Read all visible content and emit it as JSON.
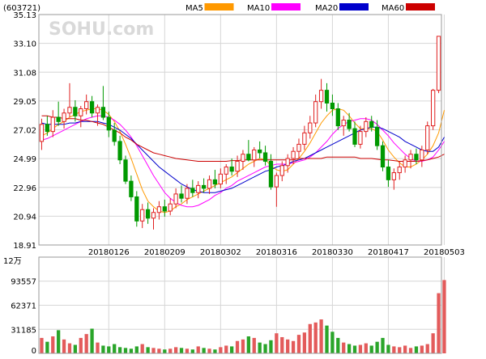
{
  "chart_data": [
    {
      "type": "candlestick",
      "code": "(603721)",
      "watermark": "SOHU.com",
      "legend": [
        {
          "name": "MA5",
          "color": "#ff9900"
        },
        {
          "name": "MA10",
          "color": "#ff00ff"
        },
        {
          "name": "MA20",
          "color": "#0000cc"
        },
        {
          "name": "MA60",
          "color": "#cc0000"
        }
      ],
      "ylim": [
        18.91,
        35.13
      ],
      "y_ticks": [
        "35.13",
        "33.10",
        "31.08",
        "29.05",
        "27.02",
        "24.99",
        "22.96",
        "20.94",
        "18.91"
      ],
      "x_ticks": [
        {
          "label": "20180126",
          "index": 12
        },
        {
          "label": "20180209",
          "index": 22
        },
        {
          "label": "20180302",
          "index": 32
        },
        {
          "label": "20180316",
          "index": 42
        },
        {
          "label": "20180330",
          "index": 52
        },
        {
          "label": "20180417",
          "index": 62
        },
        {
          "label": "20180503",
          "index": 72
        }
      ],
      "grid": true,
      "candles": [
        {
          "o": 26.2,
          "h": 27.8,
          "l": 25.6,
          "c": 27.4
        },
        {
          "o": 27.4,
          "h": 28.0,
          "l": 26.6,
          "c": 26.9
        },
        {
          "o": 26.9,
          "h": 28.4,
          "l": 26.5,
          "c": 27.9
        },
        {
          "o": 27.9,
          "h": 29.0,
          "l": 27.3,
          "c": 27.6
        },
        {
          "o": 27.6,
          "h": 28.5,
          "l": 27.1,
          "c": 28.2
        },
        {
          "o": 28.2,
          "h": 30.3,
          "l": 27.9,
          "c": 28.6
        },
        {
          "o": 28.6,
          "h": 29.1,
          "l": 27.6,
          "c": 28.0
        },
        {
          "o": 28.0,
          "h": 28.7,
          "l": 27.2,
          "c": 28.5
        },
        {
          "o": 28.5,
          "h": 29.5,
          "l": 28.1,
          "c": 29.0
        },
        {
          "o": 29.0,
          "h": 29.4,
          "l": 27.9,
          "c": 28.2
        },
        {
          "o": 28.2,
          "h": 28.8,
          "l": 27.3,
          "c": 28.6
        },
        {
          "o": 28.6,
          "h": 30.1,
          "l": 27.7,
          "c": 27.9
        },
        {
          "o": 27.9,
          "h": 28.3,
          "l": 26.5,
          "c": 27.0
        },
        {
          "o": 27.0,
          "h": 27.5,
          "l": 25.9,
          "c": 26.2
        },
        {
          "o": 26.2,
          "h": 26.6,
          "l": 24.6,
          "c": 24.9
        },
        {
          "o": 24.9,
          "h": 25.2,
          "l": 23.2,
          "c": 23.4
        },
        {
          "o": 23.4,
          "h": 23.8,
          "l": 22.0,
          "c": 22.3
        },
        {
          "o": 22.3,
          "h": 22.7,
          "l": 20.2,
          "c": 20.6
        },
        {
          "o": 20.6,
          "h": 21.8,
          "l": 20.1,
          "c": 21.4
        },
        {
          "o": 21.4,
          "h": 21.9,
          "l": 20.4,
          "c": 20.8
        },
        {
          "o": 20.8,
          "h": 21.5,
          "l": 20.0,
          "c": 21.2
        },
        {
          "o": 21.2,
          "h": 22.0,
          "l": 20.7,
          "c": 21.6
        },
        {
          "o": 21.6,
          "h": 22.1,
          "l": 20.9,
          "c": 21.3
        },
        {
          "o": 21.3,
          "h": 22.2,
          "l": 21.0,
          "c": 21.8
        },
        {
          "o": 21.8,
          "h": 22.9,
          "l": 21.5,
          "c": 22.5
        },
        {
          "o": 22.5,
          "h": 23.1,
          "l": 21.9,
          "c": 22.2
        },
        {
          "o": 22.2,
          "h": 23.2,
          "l": 21.8,
          "c": 22.9
        },
        {
          "o": 22.9,
          "h": 23.5,
          "l": 22.3,
          "c": 22.6
        },
        {
          "o": 22.6,
          "h": 23.4,
          "l": 22.2,
          "c": 23.1
        },
        {
          "o": 23.1,
          "h": 23.6,
          "l": 22.6,
          "c": 22.9
        },
        {
          "o": 22.9,
          "h": 23.8,
          "l": 22.5,
          "c": 23.5
        },
        {
          "o": 23.5,
          "h": 24.2,
          "l": 22.9,
          "c": 23.2
        },
        {
          "o": 23.2,
          "h": 24.3,
          "l": 22.9,
          "c": 23.9
        },
        {
          "o": 23.9,
          "h": 24.6,
          "l": 23.2,
          "c": 24.4
        },
        {
          "o": 24.4,
          "h": 25.0,
          "l": 23.8,
          "c": 24.1
        },
        {
          "o": 24.1,
          "h": 25.2,
          "l": 23.7,
          "c": 24.8
        },
        {
          "o": 24.8,
          "h": 25.6,
          "l": 24.2,
          "c": 25.3
        },
        {
          "o": 25.3,
          "h": 26.3,
          "l": 24.8,
          "c": 24.9
        },
        {
          "o": 24.9,
          "h": 25.8,
          "l": 24.4,
          "c": 25.6
        },
        {
          "o": 25.6,
          "h": 26.2,
          "l": 25.0,
          "c": 25.4
        },
        {
          "o": 25.4,
          "h": 25.9,
          "l": 24.5,
          "c": 24.8
        },
        {
          "o": 24.8,
          "h": 25.3,
          "l": 22.8,
          "c": 23.0
        },
        {
          "o": 23.0,
          "h": 24.0,
          "l": 21.6,
          "c": 23.8
        },
        {
          "o": 23.8,
          "h": 24.8,
          "l": 23.4,
          "c": 24.5
        },
        {
          "o": 24.5,
          "h": 25.3,
          "l": 24.0,
          "c": 25.0
        },
        {
          "o": 25.0,
          "h": 25.8,
          "l": 24.6,
          "c": 25.5
        },
        {
          "o": 25.5,
          "h": 26.4,
          "l": 25.0,
          "c": 26.0
        },
        {
          "o": 26.0,
          "h": 27.3,
          "l": 25.6,
          "c": 26.8
        },
        {
          "o": 26.8,
          "h": 28.0,
          "l": 26.4,
          "c": 27.5
        },
        {
          "o": 27.5,
          "h": 29.5,
          "l": 27.2,
          "c": 29.0
        },
        {
          "o": 29.0,
          "h": 30.6,
          "l": 28.5,
          "c": 29.8
        },
        {
          "o": 29.8,
          "h": 30.3,
          "l": 28.3,
          "c": 28.9
        },
        {
          "o": 28.9,
          "h": 29.5,
          "l": 28.0,
          "c": 28.5
        },
        {
          "o": 28.5,
          "h": 28.9,
          "l": 27.0,
          "c": 27.3
        },
        {
          "o": 27.3,
          "h": 28.0,
          "l": 26.6,
          "c": 27.7
        },
        {
          "o": 27.7,
          "h": 28.2,
          "l": 26.9,
          "c": 27.1
        },
        {
          "o": 27.1,
          "h": 27.6,
          "l": 25.8,
          "c": 26.0
        },
        {
          "o": 26.0,
          "h": 27.3,
          "l": 25.7,
          "c": 26.9
        },
        {
          "o": 26.9,
          "h": 27.9,
          "l": 26.5,
          "c": 27.6
        },
        {
          "o": 27.6,
          "h": 28.0,
          "l": 26.9,
          "c": 27.2
        },
        {
          "o": 27.2,
          "h": 27.7,
          "l": 25.6,
          "c": 25.9
        },
        {
          "o": 25.9,
          "h": 26.2,
          "l": 24.1,
          "c": 24.4
        },
        {
          "o": 24.4,
          "h": 24.9,
          "l": 23.0,
          "c": 23.5
        },
        {
          "o": 23.5,
          "h": 24.3,
          "l": 22.8,
          "c": 24.0
        },
        {
          "o": 24.0,
          "h": 24.8,
          "l": 23.5,
          "c": 24.4
        },
        {
          "o": 24.4,
          "h": 25.2,
          "l": 24.0,
          "c": 24.9
        },
        {
          "o": 24.9,
          "h": 25.6,
          "l": 24.3,
          "c": 25.3
        },
        {
          "o": 25.3,
          "h": 25.7,
          "l": 24.6,
          "c": 24.9
        },
        {
          "o": 24.9,
          "h": 25.9,
          "l": 24.4,
          "c": 25.6
        },
        {
          "o": 25.6,
          "h": 27.6,
          "l": 25.3,
          "c": 27.3
        },
        {
          "o": 27.3,
          "h": 29.9,
          "l": 27.0,
          "c": 29.8
        },
        {
          "o": 29.8,
          "h": 33.6,
          "l": 29.6,
          "c": 33.6
        }
      ],
      "ma": {
        "MA5": [
          26.6,
          26.8,
          27.1,
          27.4,
          27.6,
          27.9,
          28.1,
          28.3,
          28.4,
          28.5,
          28.5,
          28.4,
          28.1,
          27.6,
          26.9,
          26.0,
          25.0,
          23.9,
          22.8,
          22.0,
          21.6,
          21.3,
          21.2,
          21.3,
          21.6,
          21.8,
          22.1,
          22.3,
          22.5,
          22.7,
          22.9,
          23.1,
          23.3,
          23.5,
          23.7,
          24.0,
          24.3,
          24.6,
          24.8,
          25.0,
          24.9,
          24.5,
          24.2,
          24.1,
          24.2,
          24.6,
          25.0,
          25.5,
          26.1,
          26.8,
          27.5,
          28.0,
          28.4,
          28.5,
          28.4,
          28.0,
          27.5,
          27.1,
          27.1,
          27.1,
          26.9,
          26.3,
          25.6,
          25.1,
          24.7,
          24.4,
          24.4,
          24.6,
          24.9,
          25.3,
          25.9,
          26.8,
          28.4
        ],
        "MA10": [
          26.3,
          26.4,
          26.6,
          26.8,
          27.0,
          27.2,
          27.4,
          27.6,
          27.8,
          27.9,
          28.0,
          28.0,
          27.9,
          27.7,
          27.4,
          27.0,
          26.5,
          25.9,
          25.2,
          24.5,
          23.8,
          23.2,
          22.6,
          22.2,
          21.9,
          21.7,
          21.6,
          21.6,
          21.7,
          21.9,
          22.1,
          22.4,
          22.6,
          22.9,
          23.1,
          23.4,
          23.6,
          23.8,
          24.0,
          24.2,
          24.4,
          24.5,
          24.6,
          24.6,
          24.6,
          24.7,
          24.8,
          24.9,
          25.1,
          25.4,
          25.8,
          26.2,
          26.7,
          27.1,
          27.4,
          27.6,
          27.7,
          27.8,
          27.8,
          27.7,
          27.4,
          27.0,
          26.6,
          26.1,
          25.7,
          25.3,
          25.0,
          24.8,
          24.8,
          24.9,
          25.1,
          25.6,
          26.2
        ],
        "MA20": [
          27.5,
          27.4,
          27.4,
          27.4,
          27.4,
          27.5,
          27.5,
          27.6,
          27.6,
          27.6,
          27.6,
          27.5,
          27.4,
          27.2,
          27.0,
          26.7,
          26.4,
          26.0,
          25.6,
          25.2,
          24.8,
          24.4,
          24.1,
          23.8,
          23.5,
          23.2,
          23.0,
          22.8,
          22.7,
          22.6,
          22.6,
          22.6,
          22.7,
          22.8,
          22.9,
          23.1,
          23.3,
          23.5,
          23.7,
          23.9,
          24.1,
          24.2,
          24.4,
          24.5,
          24.6,
          24.8,
          24.9,
          25.0,
          25.2,
          25.4,
          25.6,
          25.8,
          26.0,
          26.2,
          26.4,
          26.6,
          26.8,
          27.0,
          27.1,
          27.2,
          27.2,
          27.1,
          26.9,
          26.7,
          26.5,
          26.2,
          26.0,
          25.8,
          25.6,
          25.5,
          25.5,
          25.8,
          26.5
        ],
        "MA60": [
          28.0,
          28.0,
          27.9,
          27.9,
          27.8,
          27.8,
          27.8,
          27.7,
          27.7,
          27.6,
          27.5,
          27.4,
          27.2,
          27.0,
          26.8,
          26.5,
          26.3,
          26.0,
          25.8,
          25.6,
          25.4,
          25.3,
          25.2,
          25.1,
          25.0,
          24.95,
          24.9,
          24.85,
          24.8,
          24.8,
          24.8,
          24.8,
          24.8,
          24.8,
          24.85,
          24.85,
          24.9,
          24.9,
          24.9,
          24.9,
          24.9,
          24.9,
          24.9,
          24.9,
          24.9,
          24.9,
          25.0,
          25.0,
          25.0,
          25.0,
          25.0,
          25.1,
          25.1,
          25.1,
          25.1,
          25.1,
          25.1,
          25.0,
          25.0,
          25.0,
          24.95,
          24.9,
          24.9,
          24.85,
          24.8,
          24.8,
          24.8,
          24.8,
          24.85,
          24.9,
          25.0,
          25.1,
          25.3
        ]
      }
    },
    {
      "type": "bar",
      "unit": "12万",
      "ylim": [
        0,
        124742
      ],
      "y_ticks": [
        "93557",
        "62371",
        "31185",
        "0"
      ],
      "grid": true,
      "volume": [
        20000,
        15000,
        22000,
        30000,
        18000,
        13000,
        11000,
        20000,
        25000,
        32000,
        14000,
        10000,
        9000,
        12000,
        8000,
        7000,
        6000,
        9000,
        12000,
        8000,
        7000,
        6000,
        5000,
        6000,
        8000,
        7000,
        6000,
        5000,
        9000,
        7000,
        6000,
        5000,
        8000,
        10000,
        9000,
        16000,
        18000,
        22000,
        20000,
        14000,
        12000,
        17000,
        26000,
        21000,
        18000,
        16000,
        24000,
        27000,
        38000,
        40000,
        44000,
        36000,
        28000,
        20000,
        14000,
        12000,
        10000,
        11000,
        13000,
        10000,
        15000,
        20000,
        11000,
        9000,
        8000,
        10000,
        7000,
        9000,
        10000,
        12000,
        26000,
        78000,
        95000
      ]
    }
  ]
}
